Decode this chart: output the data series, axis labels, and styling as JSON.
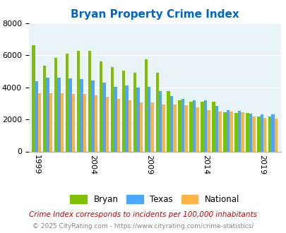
{
  "title": "Bryan Property Crime Index",
  "years": [
    1999,
    2000,
    2001,
    2002,
    2003,
    2004,
    2005,
    2006,
    2007,
    2008,
    2009,
    2010,
    2011,
    2012,
    2013,
    2014,
    2015,
    2016,
    2017,
    2018,
    2019,
    2020
  ],
  "bryan": [
    6650,
    5350,
    5850,
    6100,
    6300,
    6300,
    5600,
    5250,
    5050,
    4900,
    5750,
    4900,
    3750,
    3200,
    3100,
    3100,
    3100,
    2450,
    2400,
    2400,
    2200,
    2200
  ],
  "texas": [
    4400,
    4600,
    4600,
    4550,
    4500,
    4450,
    4300,
    4050,
    4100,
    4000,
    4050,
    3750,
    3450,
    3300,
    3200,
    3200,
    2850,
    2600,
    2550,
    2350,
    2300,
    2300
  ],
  "national": [
    3650,
    3650,
    3650,
    3600,
    3600,
    3500,
    3400,
    3300,
    3200,
    3050,
    3050,
    2950,
    2950,
    2900,
    2750,
    2600,
    2500,
    2500,
    2450,
    2200,
    2100,
    2050
  ],
  "bryan_color": "#80c000",
  "texas_color": "#4da6ff",
  "national_color": "#ffb347",
  "bg_color": "#e8f4f8",
  "ylim": [
    0,
    8000
  ],
  "yticks": [
    0,
    2000,
    4000,
    6000,
    8000
  ],
  "xtick_years": [
    1999,
    2004,
    2009,
    2014,
    2019
  ],
  "footnote1": "Crime Index corresponds to incidents per 100,000 inhabitants",
  "footnote2": "© 2025 CityRating.com - https://www.cityrating.com/crime-statistics/",
  "title_color": "#0066cc",
  "footnote1_color": "#cc0000",
  "footnote2_color": "#888888"
}
